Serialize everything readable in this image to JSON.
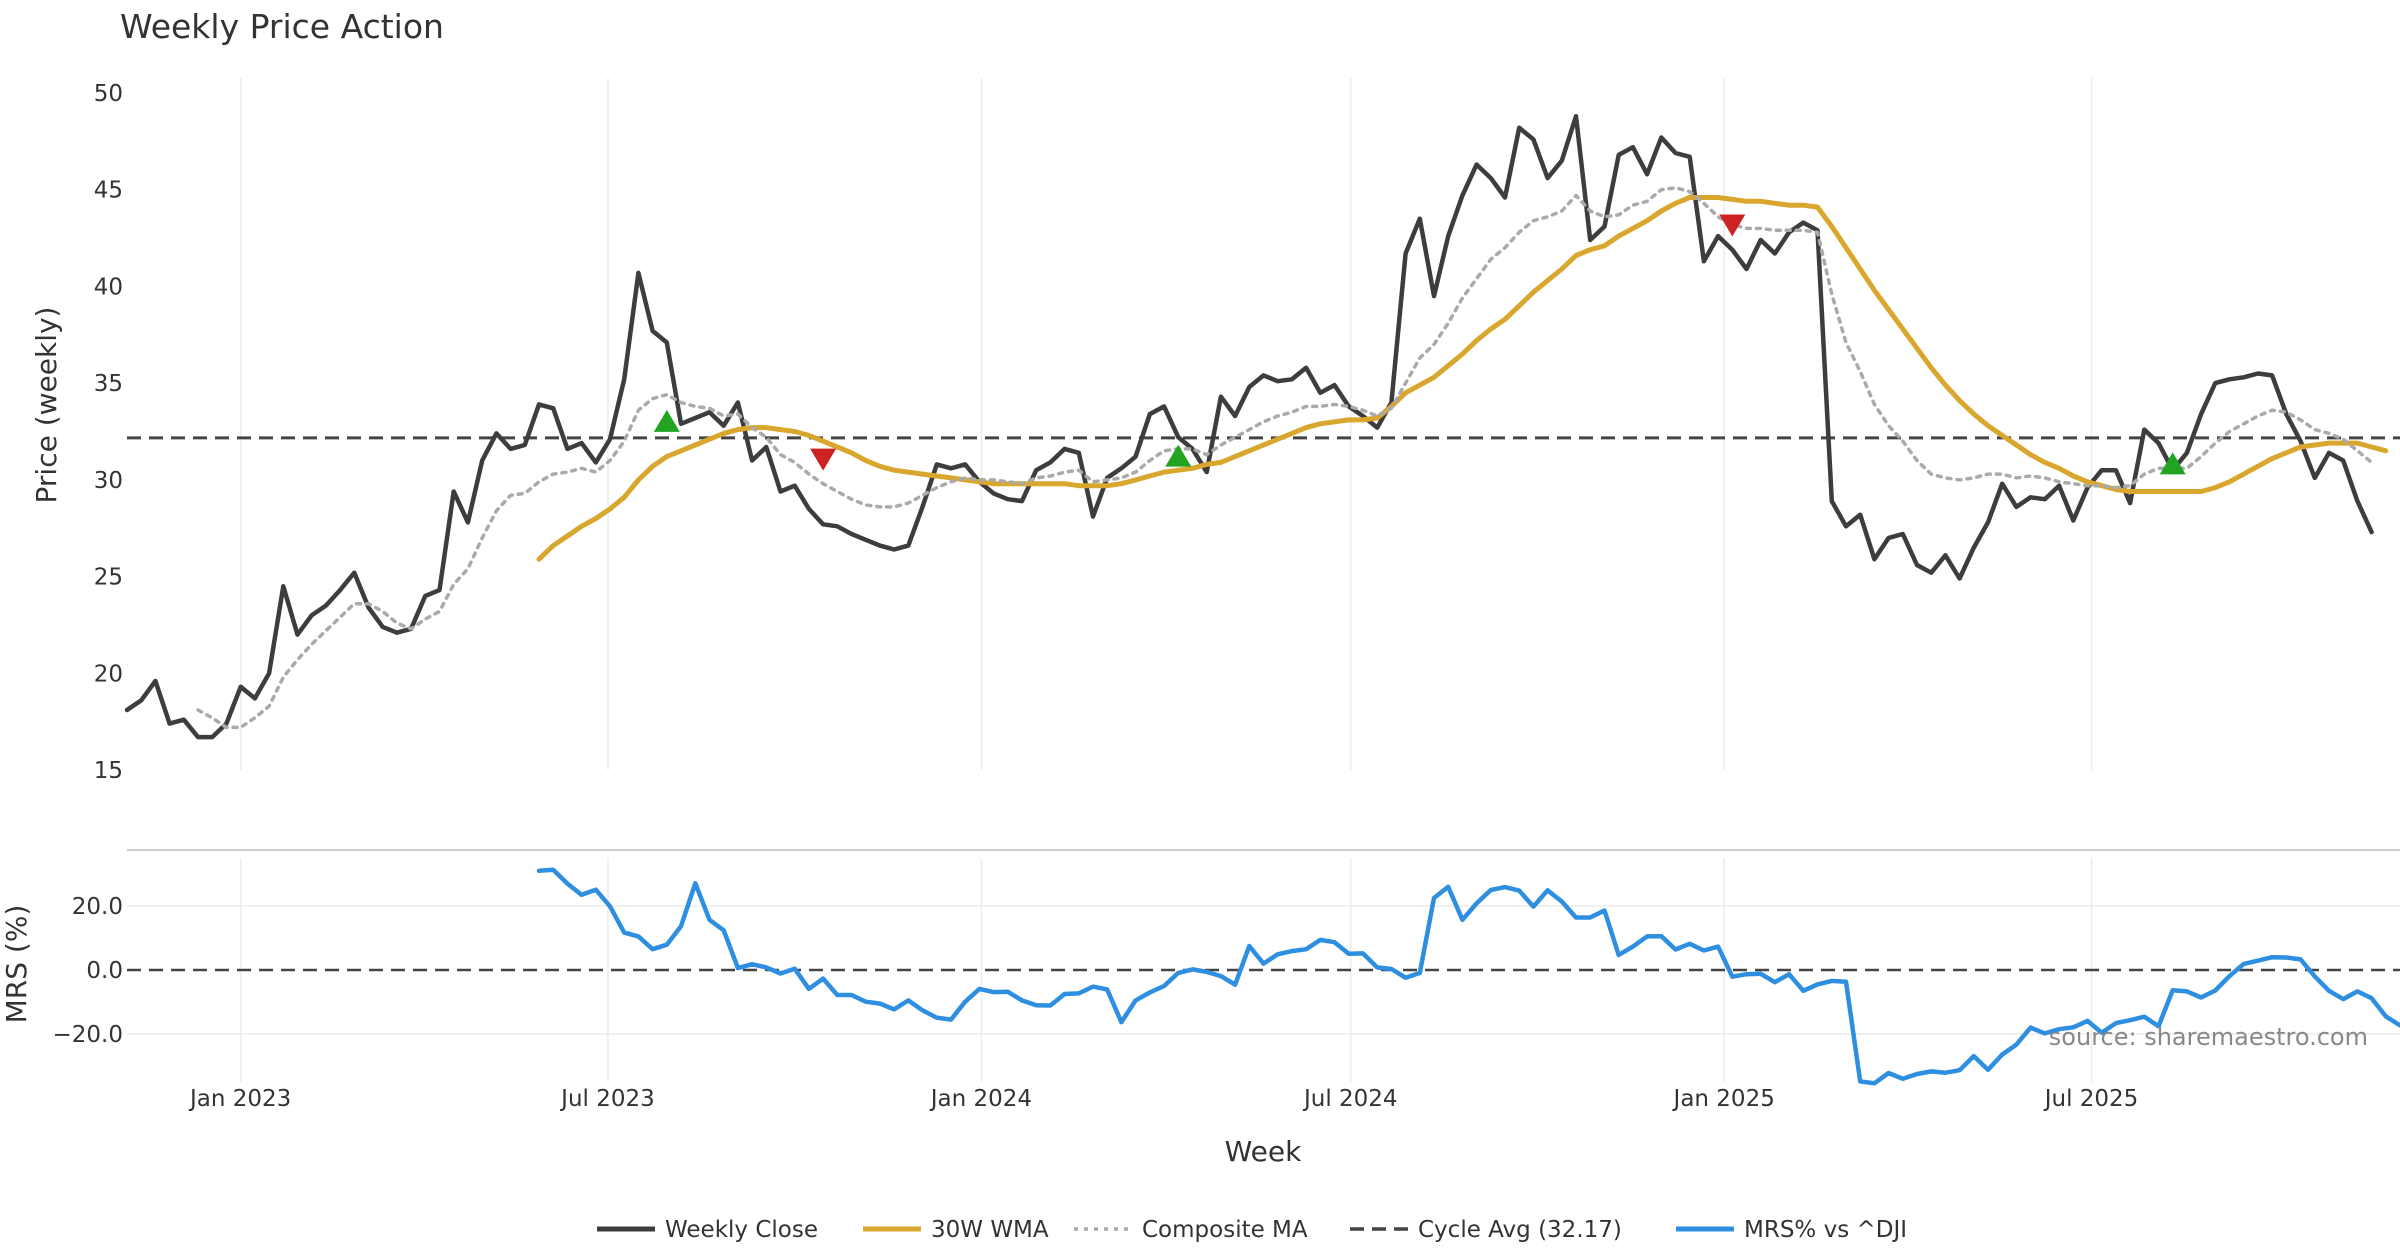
{
  "chart_data": {
    "type": "line",
    "title": "Weekly Price Action",
    "source_note": "source: sharemaestro.com",
    "xlabel": "Week",
    "x_ticks": [
      "Jan 2023",
      "Jul 2023",
      "Jan 2024",
      "Jul 2024",
      "Jan 2025",
      "Jul 2025"
    ],
    "x_tick_dates": [
      "2023-01-01",
      "2023-07-01",
      "2024-01-01",
      "2024-07-01",
      "2025-01-01",
      "2025-07-01"
    ],
    "x_range": [
      "2022-11-06",
      "2025-11-30"
    ],
    "x": [
      "2022-11-06",
      "2022-11-13",
      "2022-11-20",
      "2022-11-27",
      "2022-12-04",
      "2022-12-11",
      "2022-12-18",
      "2022-12-25",
      "2023-01-01",
      "2023-01-08",
      "2023-01-15",
      "2023-01-22",
      "2023-01-29",
      "2023-02-05",
      "2023-02-12",
      "2023-02-19",
      "2023-02-26",
      "2023-03-05",
      "2023-03-12",
      "2023-03-19",
      "2023-03-26",
      "2023-04-02",
      "2023-04-09",
      "2023-04-16",
      "2023-04-23",
      "2023-04-30",
      "2023-05-07",
      "2023-05-14",
      "2023-05-21",
      "2023-05-28",
      "2023-06-04",
      "2023-06-11",
      "2023-06-18",
      "2023-06-25",
      "2023-07-02",
      "2023-07-09",
      "2023-07-16",
      "2023-07-23",
      "2023-07-30",
      "2023-08-06",
      "2023-08-13",
      "2023-08-20",
      "2023-08-27",
      "2023-09-03",
      "2023-09-10",
      "2023-09-17",
      "2023-09-24",
      "2023-10-01",
      "2023-10-08",
      "2023-10-15",
      "2023-10-22",
      "2023-10-29",
      "2023-11-05",
      "2023-11-12",
      "2023-11-19",
      "2023-11-26",
      "2023-12-03",
      "2023-12-10",
      "2023-12-17",
      "2023-12-24",
      "2023-12-31",
      "2024-01-07",
      "2024-01-14",
      "2024-01-21",
      "2024-01-28",
      "2024-02-04",
      "2024-02-11",
      "2024-02-18",
      "2024-02-25",
      "2024-03-03",
      "2024-03-10",
      "2024-03-17",
      "2024-03-24",
      "2024-03-31",
      "2024-04-07",
      "2024-04-14",
      "2024-04-21",
      "2024-04-28",
      "2024-05-05",
      "2024-05-12",
      "2024-05-19",
      "2024-05-26",
      "2024-06-02",
      "2024-06-09",
      "2024-06-16",
      "2024-06-23",
      "2024-06-30",
      "2024-07-07",
      "2024-07-14",
      "2024-07-21",
      "2024-07-28",
      "2024-08-04",
      "2024-08-11",
      "2024-08-18",
      "2024-08-25",
      "2024-09-01",
      "2024-09-08",
      "2024-09-15",
      "2024-09-22",
      "2024-09-29",
      "2024-10-06",
      "2024-10-13",
      "2024-10-20",
      "2024-10-27",
      "2024-11-03",
      "2024-11-10",
      "2024-11-17",
      "2024-11-24",
      "2024-12-01",
      "2024-12-08",
      "2024-12-15",
      "2024-12-22",
      "2024-12-29",
      "2025-01-05",
      "2025-01-12",
      "2025-01-19",
      "2025-01-26",
      "2025-02-02",
      "2025-02-09",
      "2025-02-16",
      "2025-02-23",
      "2025-03-02",
      "2025-03-09",
      "2025-03-16",
      "2025-03-23",
      "2025-03-30",
      "2025-04-06",
      "2025-04-13",
      "2025-04-20",
      "2025-04-27",
      "2025-05-04",
      "2025-05-11",
      "2025-05-18",
      "2025-05-25",
      "2025-06-01",
      "2025-06-08",
      "2025-06-15",
      "2025-06-22",
      "2025-06-29",
      "2025-07-06",
      "2025-07-13",
      "2025-07-20",
      "2025-07-27",
      "2025-08-03",
      "2025-08-10",
      "2025-08-17",
      "2025-08-24",
      "2025-08-31",
      "2025-09-07",
      "2025-09-14",
      "2025-09-21",
      "2025-09-28",
      "2025-10-05",
      "2025-10-12",
      "2025-10-19",
      "2025-10-26",
      "2025-11-02",
      "2025-11-09",
      "2025-11-16",
      "2025-11-23",
      "2025-11-30"
    ],
    "price_panel": {
      "ylabel": "Price (weekly)",
      "ylim": [
        15,
        50
      ],
      "y_ticks": [
        15,
        20,
        25,
        30,
        35,
        40,
        45,
        50
      ],
      "series": [
        {
          "name": "Weekly Close",
          "color": "#3d3d3d",
          "style": "solid",
          "values": [
            18.1,
            18.6,
            19.6,
            17.4,
            17.6,
            16.7,
            16.7,
            17.4,
            19.3,
            18.7,
            20.0,
            24.5,
            22.0,
            23.0,
            23.5,
            24.3,
            25.2,
            23.4,
            22.4,
            22.1,
            22.3,
            24.0,
            24.3,
            29.4,
            27.8,
            31.0,
            32.4,
            31.6,
            31.8,
            33.9,
            33.7,
            31.6,
            31.9,
            30.9,
            32.1,
            35.2,
            40.7,
            37.7,
            37.1,
            32.9,
            33.2,
            33.5,
            32.8,
            34.0,
            31.0,
            31.7,
            29.4,
            29.7,
            28.5,
            27.7,
            27.6,
            27.2,
            26.9,
            26.6,
            26.4,
            26.6,
            28.6,
            30.8,
            30.6,
            30.8,
            29.9,
            29.3,
            29.0,
            28.9,
            30.5,
            30.9,
            31.6,
            31.4,
            28.1,
            30.1,
            30.6,
            31.2,
            33.4,
            33.8,
            32.2,
            31.6,
            30.4,
            34.3,
            33.3,
            34.8,
            35.4,
            35.1,
            35.2,
            35.8,
            34.5,
            34.9,
            33.8,
            33.3,
            32.7,
            34.0,
            41.7,
            43.5,
            39.5,
            42.6,
            44.7,
            46.3,
            45.6,
            44.6,
            48.2,
            47.6,
            45.6,
            46.5,
            48.8,
            42.4,
            43.1,
            46.8,
            47.2,
            45.8,
            47.7,
            46.9,
            46.7,
            41.3,
            42.6,
            41.9,
            40.9,
            42.4,
            41.7,
            42.8,
            43.3,
            42.9,
            28.9,
            27.6,
            28.2,
            25.9,
            27.0,
            27.2,
            25.6,
            25.2,
            26.1,
            24.9,
            26.5,
            27.8,
            29.8,
            28.6,
            29.1,
            29.0,
            29.7,
            27.9,
            29.6,
            30.5,
            30.5,
            28.8,
            32.6,
            31.9,
            30.5,
            31.4,
            33.4,
            35.0,
            35.2,
            35.3,
            35.5,
            35.4,
            33.4,
            32.0,
            30.1,
            31.4,
            31.0,
            28.9,
            27.3
          ]
        },
        {
          "name": "30W WMA",
          "color": "#d9a62e",
          "style": "solid",
          "values": [
            null,
            null,
            null,
            null,
            null,
            null,
            null,
            null,
            null,
            null,
            null,
            null,
            null,
            null,
            null,
            null,
            null,
            null,
            null,
            null,
            null,
            null,
            null,
            null,
            null,
            null,
            null,
            null,
            null,
            25.9,
            26.6,
            27.1,
            27.6,
            28.0,
            28.5,
            29.1,
            30.0,
            30.7,
            31.2,
            31.5,
            31.8,
            32.1,
            32.4,
            32.6,
            32.7,
            32.7,
            32.6,
            32.5,
            32.3,
            32.0,
            31.7,
            31.4,
            31.0,
            30.7,
            30.5,
            30.4,
            30.3,
            30.2,
            30.1,
            30.0,
            29.9,
            29.8,
            29.8,
            29.8,
            29.8,
            29.8,
            29.8,
            29.7,
            29.7,
            29.7,
            29.8,
            30.0,
            30.2,
            30.4,
            30.5,
            30.6,
            30.8,
            30.9,
            31.2,
            31.5,
            31.8,
            32.1,
            32.4,
            32.7,
            32.9,
            33.0,
            33.1,
            33.1,
            33.2,
            33.8,
            34.5,
            34.9,
            35.3,
            35.9,
            36.5,
            37.2,
            37.8,
            38.3,
            39.0,
            39.7,
            40.3,
            40.9,
            41.6,
            41.9,
            42.1,
            42.6,
            43.0,
            43.4,
            43.9,
            44.3,
            44.6,
            44.6,
            44.6,
            44.5,
            44.4,
            44.4,
            44.3,
            44.2,
            44.2,
            44.1,
            43.1,
            42.0,
            40.9,
            39.8,
            38.8,
            37.8,
            36.8,
            35.8,
            34.9,
            34.1,
            33.4,
            32.8,
            32.3,
            31.8,
            31.3,
            30.9,
            30.6,
            30.2,
            29.9,
            29.7,
            29.5,
            29.4,
            29.4,
            29.4,
            29.4,
            29.4,
            29.4,
            29.6,
            29.9,
            30.3,
            30.7,
            31.1,
            31.4,
            31.7,
            31.8,
            31.9,
            31.9,
            31.9,
            31.7,
            31.5
          ]
        },
        {
          "name": "Composite MA",
          "color": "#aaaaaa",
          "style": "dotted",
          "values": [
            null,
            null,
            null,
            null,
            null,
            18.1,
            17.7,
            17.2,
            17.2,
            17.7,
            18.3,
            19.8,
            20.7,
            21.5,
            22.2,
            22.9,
            23.6,
            23.6,
            23.2,
            22.6,
            22.3,
            22.8,
            23.2,
            24.6,
            25.4,
            27.0,
            28.4,
            29.2,
            29.3,
            29.9,
            30.3,
            30.4,
            30.6,
            30.4,
            31.0,
            32.0,
            33.6,
            34.2,
            34.4,
            34.0,
            33.8,
            33.7,
            33.3,
            33.4,
            32.7,
            32.2,
            31.3,
            30.9,
            30.3,
            29.8,
            29.4,
            29.0,
            28.7,
            28.6,
            28.6,
            28.8,
            29.2,
            29.6,
            29.9,
            30.1,
            30.0,
            30.0,
            29.9,
            29.8,
            30.1,
            30.2,
            30.4,
            30.5,
            29.9,
            30.0,
            30.1,
            30.4,
            31.0,
            31.5,
            31.6,
            31.6,
            31.3,
            31.8,
            32.2,
            32.6,
            33.0,
            33.3,
            33.5,
            33.8,
            33.8,
            33.9,
            33.8,
            33.6,
            33.3,
            33.7,
            35.0,
            36.3,
            37.0,
            38.1,
            39.4,
            40.4,
            41.4,
            42.0,
            42.8,
            43.4,
            43.6,
            43.9,
            44.7,
            43.9,
            43.6,
            43.7,
            44.2,
            44.4,
            45.0,
            45.1,
            44.9,
            44.3,
            43.6,
            43.2,
            43.0,
            43.0,
            42.9,
            42.9,
            42.9,
            42.8,
            39.6,
            37.1,
            35.6,
            33.9,
            32.8,
            32.0,
            31.0,
            30.3,
            30.1,
            30.0,
            30.1,
            30.3,
            30.3,
            30.1,
            30.2,
            30.1,
            29.9,
            29.8,
            29.7,
            29.7,
            29.6,
            29.7,
            30.3,
            30.6,
            30.6,
            30.6,
            31.2,
            31.9,
            32.5,
            32.9,
            33.3,
            33.6,
            33.5,
            33.1,
            32.6,
            32.4,
            32.1,
            31.5,
            30.9
          ]
        },
        {
          "name": "Cycle Avg (32.17)",
          "color": "#444444",
          "style": "dashed",
          "constant": 32.17
        }
      ],
      "markers": [
        {
          "type": "buy",
          "date": "2023-07-30",
          "value": 33.0,
          "color": "#22a322"
        },
        {
          "type": "sell",
          "date": "2023-10-15",
          "value": 31.1,
          "color": "#cc2222"
        },
        {
          "type": "buy",
          "date": "2024-04-07",
          "value": 31.2,
          "color": "#22a322"
        },
        {
          "type": "sell",
          "date": "2025-01-05",
          "value": 43.2,
          "color": "#cc2222"
        },
        {
          "type": "buy",
          "date": "2025-08-10",
          "value": 30.8,
          "color": "#22a322"
        }
      ]
    },
    "mrs_panel": {
      "ylabel": "MRS (%)",
      "ylim": [
        -35,
        35
      ],
      "y_ticks": [
        20.0,
        0.0,
        -20.0
      ],
      "y_tick_labels": [
        "20.0",
        "0.0",
        "−20.0"
      ],
      "zero_line": "dashed",
      "series": [
        {
          "name": "MRS% vs ^DJI",
          "color": "#2e8fe0",
          "style": "solid",
          "start_date": "2023-05-28",
          "values": [
            31.0,
            31.3,
            27.0,
            23.5,
            25.1,
            19.9,
            11.7,
            10.5,
            6.5,
            7.9,
            13.7,
            27.1,
            15.7,
            12.4,
            0.6,
            1.8,
            0.8,
            -1.1,
            0.4,
            -5.9,
            -2.7,
            -7.8,
            -7.8,
            -9.9,
            -10.5,
            -12.3,
            -9.5,
            -12.6,
            -14.9,
            -15.5,
            -9.9,
            -5.9,
            -6.9,
            -6.8,
            -9.5,
            -11.0,
            -11.1,
            -7.5,
            -7.3,
            -5.2,
            -6.1,
            -16.3,
            -9.5,
            -7.0,
            -5.0,
            -0.9,
            0.2,
            -0.6,
            -1.9,
            -4.6,
            7.5,
            2.0,
            4.9,
            5.9,
            6.5,
            9.4,
            8.7,
            5.1,
            5.2,
            0.8,
            0.3,
            -2.4,
            -0.9,
            22.5,
            26.0,
            15.7,
            20.8,
            25.0,
            25.9,
            24.8,
            19.8,
            24.9,
            21.4,
            16.4,
            16.4,
            18.6,
            4.7,
            7.3,
            10.5,
            10.6,
            6.4,
            8.2,
            6.1,
            7.3,
            -2.1,
            -1.3,
            -1.2,
            -3.8,
            -1.3,
            -6.5,
            -4.5,
            -3.4,
            -3.7,
            -34.8,
            -35.4,
            -32.2,
            -34.0,
            -32.5,
            -31.7,
            -32.1,
            -31.3,
            -26.9,
            -31.2,
            -26.4,
            -23.3,
            -18.0,
            -19.8,
            -18.5,
            -17.9,
            -15.9,
            -19.6,
            -16.6,
            -15.7,
            -14.6,
            -17.6,
            -6.3,
            -6.7,
            -8.6,
            -6.4,
            -1.9,
            1.9,
            2.9,
            4.0,
            3.9,
            3.3,
            -2.0,
            -6.5,
            -9.1,
            -6.7,
            -8.8,
            -14.5,
            -17.3
          ]
        }
      ]
    },
    "legend": {
      "placement": "bottom-center",
      "entries": [
        {
          "label": "Weekly Close",
          "color": "#3d3d3d",
          "style": "solid"
        },
        {
          "label": "30W WMA",
          "color": "#d9a62e",
          "style": "solid"
        },
        {
          "label": "Composite MA",
          "color": "#aaaaaa",
          "style": "dotted"
        },
        {
          "label": "Cycle Avg (32.17)",
          "color": "#444444",
          "style": "dashed"
        },
        {
          "label": "MRS% vs ^DJI",
          "color": "#2e8fe0",
          "style": "solid"
        }
      ]
    },
    "grid": {
      "vertical": true,
      "horizontal_price": false,
      "horizontal_mrs": true
    }
  }
}
